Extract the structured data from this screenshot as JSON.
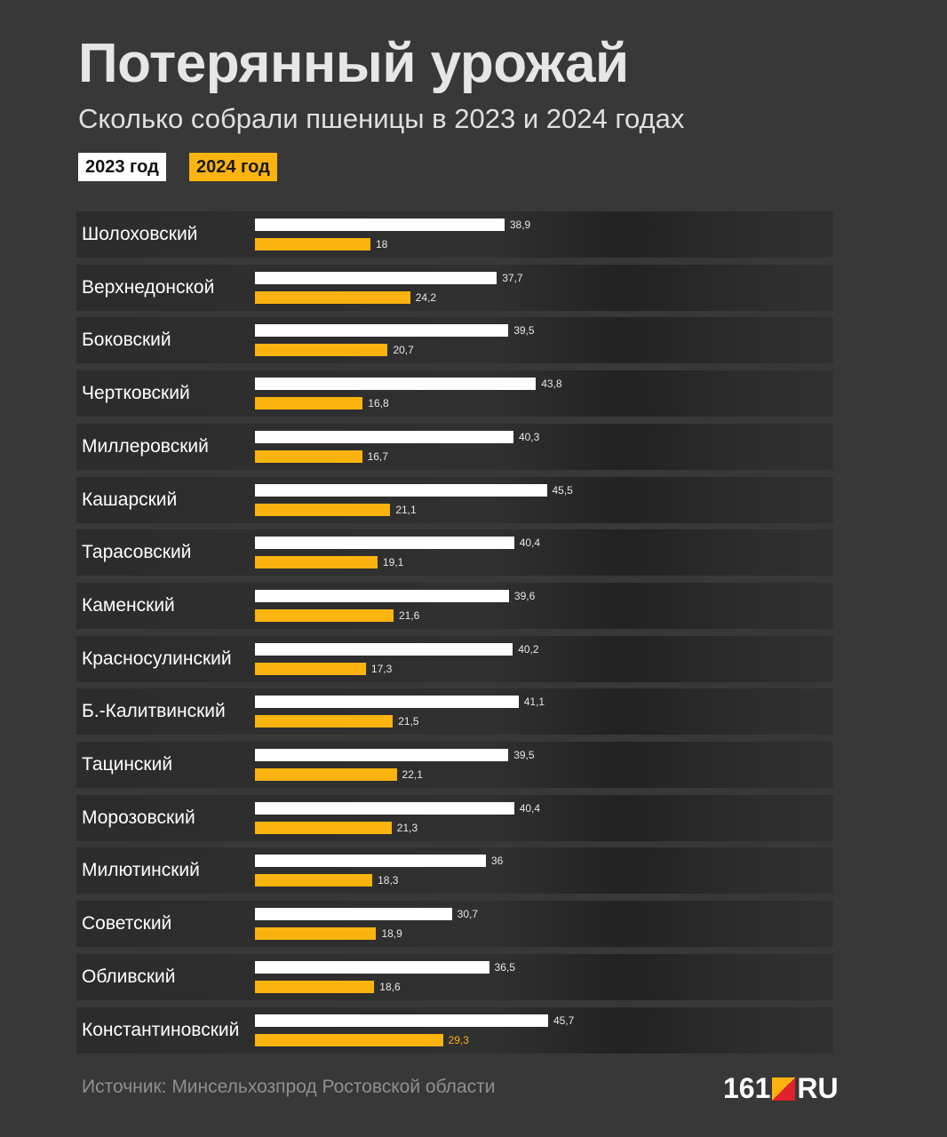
{
  "title": "Потерянный урожай",
  "subtitle": "Сколько собрали пшеницы в 2023 и 2024 годах",
  "source": "Источник: Минсельхозпрод Ростовской области",
  "logo": {
    "left": "161",
    "right": "RU"
  },
  "colors": {
    "background": "#383838",
    "series_2023": "#ffffff",
    "series_2024": "#fbb40f",
    "logo_accent": "#e0222a"
  },
  "chart_data": {
    "type": "bar",
    "orientation": "horizontal",
    "title": "Потерянный урожай",
    "subtitle": "Сколько собрали пшеницы в 2023 и 2024 годах",
    "categories": [
      "Шолоховский",
      "Верхнедонской",
      "Боковский",
      "Чертковский",
      "Миллеровский",
      "Кашарский",
      "Тарасовский",
      "Каменский",
      "Красносулинский",
      "Б.-Калитвинский",
      "Тацинский",
      "Морозовский",
      "Милютинский",
      "Советский",
      "Обливский",
      "Константиновский"
    ],
    "series": [
      {
        "name": "2023 год",
        "color": "#ffffff",
        "values": [
          38.9,
          37.7,
          39.5,
          43.8,
          40.3,
          45.5,
          40.4,
          39.6,
          40.2,
          41.1,
          39.5,
          40.4,
          36,
          30.7,
          36.5,
          45.7
        ],
        "labels": [
          "38,9",
          "37,7",
          "39,5",
          "43,8",
          "40,3",
          "45,5",
          "40,4",
          "39,6",
          "40,2",
          "41,1",
          "39,5",
          "40,4",
          "36",
          "30,7",
          "36,5",
          "45,7"
        ]
      },
      {
        "name": "2024 год",
        "color": "#fbb40f",
        "values": [
          18,
          24.2,
          20.7,
          16.8,
          16.7,
          21.1,
          19.1,
          21.6,
          17.3,
          21.5,
          22.1,
          21.3,
          18.3,
          18.9,
          18.6,
          29.3
        ],
        "labels": [
          "18",
          "24,2",
          "20,7",
          "16,8",
          "16,7",
          "21,1",
          "19,1",
          "21,6",
          "17,3",
          "21,5",
          "22,1",
          "21,3",
          "18,3",
          "18,9",
          "18,6",
          "29,3"
        ]
      }
    ],
    "highlight_category": "Константиновский",
    "xlim": [
      0,
      50
    ],
    "grid": false,
    "legend": "top-left"
  }
}
